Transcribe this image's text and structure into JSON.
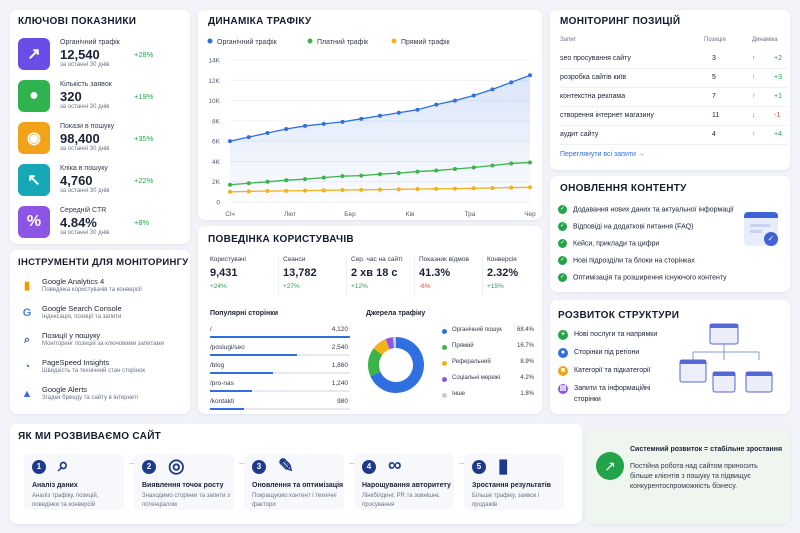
{
  "kpi": {
    "title": "КЛЮЧОВІ ПОКАЗНИКИ",
    "items": [
      {
        "label": "Органічний трафік",
        "value": "12,540",
        "period": "за останні 30 днів",
        "change": "+28%",
        "color": "#6a4de6",
        "icon": "trend-up-icon",
        "glyph": "↗"
      },
      {
        "label": "Кількість заявок",
        "value": "320",
        "period": "за останні 30 днів",
        "change": "+19%",
        "color": "#2fb34f",
        "icon": "user-icon",
        "glyph": "●"
      },
      {
        "label": "Покази в пошуку",
        "value": "98,400",
        "period": "за останні 30 днів",
        "change": "+35%",
        "color": "#f2a31a",
        "icon": "eye-icon",
        "glyph": "◉"
      },
      {
        "label": "Кліка в пошуку",
        "value": "4,760",
        "period": "за останні 30 днів",
        "change": "+22%",
        "color": "#17a8b8",
        "icon": "cursor-icon",
        "glyph": "↖"
      },
      {
        "label": "Середній CTR",
        "value": "4.84%",
        "period": "за останні 30 днів",
        "change": "+8%",
        "color": "#8c55e3",
        "icon": "percent-icon",
        "glyph": "%"
      }
    ]
  },
  "traffic": {
    "title": "ДИНАМІКА ТРАФІКУ",
    "legend": [
      "Органічний трафік",
      "Платний трафік",
      "Прямий трафік"
    ]
  },
  "chart_data": {
    "type": "line",
    "categories": [
      "Січ",
      "Лют",
      "Бер",
      "Кві",
      "Тра",
      "Чер"
    ],
    "x": [
      0,
      1,
      2,
      3,
      4,
      5,
      6,
      7,
      8,
      9,
      10,
      11,
      12,
      13,
      14,
      15,
      16
    ],
    "series": [
      {
        "name": "Органічний трафік",
        "color": "#2f6fe0",
        "values": [
          6000,
          6400,
          6800,
          7200,
          7500,
          7700,
          7900,
          8200,
          8500,
          8800,
          9100,
          9600,
          10000,
          10500,
          11100,
          11800,
          12500
        ]
      },
      {
        "name": "Платний трафік",
        "color": "#3cb34a",
        "values": [
          1700,
          1850,
          2000,
          2150,
          2250,
          2400,
          2550,
          2600,
          2750,
          2850,
          3000,
          3100,
          3250,
          3400,
          3600,
          3800,
          3900
        ]
      },
      {
        "name": "Прямий трафік",
        "color": "#f2b21a",
        "values": [
          1000,
          1050,
          1080,
          1100,
          1120,
          1150,
          1180,
          1200,
          1220,
          1250,
          1280,
          1300,
          1320,
          1350,
          1380,
          1420,
          1450
        ]
      }
    ],
    "ylim": [
      0,
      14000
    ],
    "yticks": [
      "0",
      "2K",
      "4K",
      "6K",
      "8K",
      "10K",
      "12K",
      "14K"
    ],
    "grid": true,
    "legend_position": "top"
  },
  "positions": {
    "title": "МОНІТОРИНГ ПОЗИЦІЙ",
    "headers": [
      "Запит",
      "Позиція",
      "Динаміка"
    ],
    "rows": [
      {
        "query": "seo просування сайту",
        "pos": "3",
        "dir": "↑",
        "change": "+2",
        "up": true
      },
      {
        "query": "розробка сайтів київ",
        "pos": "5",
        "dir": "↑",
        "change": "+3",
        "up": true
      },
      {
        "query": "контекстна реклама",
        "pos": "7",
        "dir": "↑",
        "change": "+1",
        "up": true
      },
      {
        "query": "створення інтернет магазину",
        "pos": "11",
        "dir": "↓",
        "change": "-1",
        "up": false
      },
      {
        "query": "аудит сайту",
        "pos": "4",
        "dir": "↑",
        "change": "+4",
        "up": true
      }
    ],
    "link": "Переглянути всі запити →"
  },
  "content": {
    "title": "ОНОВЛЕННЯ КОНТЕНТУ",
    "items": [
      "Додавання нових даних та актуальної інформації",
      "Відповіді на додаткові питання (FAQ)",
      "Кейси, приклади та цифри",
      "Нові підрозділи та блоки на сторінках",
      "Оптимізація та розширення існуючого контенту"
    ]
  },
  "tools": {
    "title": "ІНСТРУМЕНТИ ДЛЯ МОНІТОРИНГУ",
    "items": [
      {
        "name": "Google Analytics 4",
        "desc": "Поведінка користувачів та конверсії",
        "icon": "analytics-icon",
        "glyph": "▮",
        "color": "#f29900"
      },
      {
        "name": "Google Search Console",
        "desc": "Індексація, позиції та запити",
        "icon": "google-icon",
        "glyph": "G",
        "color": "#4285f4"
      },
      {
        "name": "Позиції у пошуку",
        "desc": "Моніторинг позицій за ключовими запитами",
        "icon": "search-icon",
        "glyph": "⌕",
        "color": "#4a55a2"
      },
      {
        "name": "PageSpeed Insights",
        "desc": "Швидкість та технічний стан сторінок",
        "icon": "speed-icon",
        "glyph": "◔",
        "color": "#3b6fe0"
      },
      {
        "name": "Google Alerts",
        "desc": "Згадки бренду та сайту в інтернеті",
        "icon": "bell-icon",
        "glyph": "▲",
        "color": "#3b6fe0"
      }
    ]
  },
  "behavior": {
    "title": "ПОВЕДІНКА КОРИСТУВАЧІВ",
    "stats": [
      {
        "label": "Користувачі",
        "value": "9,431",
        "change": "+24%",
        "up": true
      },
      {
        "label": "Сеанси",
        "value": "13,782",
        "change": "+27%",
        "up": true
      },
      {
        "label": "Сер. час на сайті",
        "value": "2 хв 18 с",
        "change": "+12%",
        "up": true
      },
      {
        "label": "Показник відмов",
        "value": "41.3%",
        "change": "-6%",
        "up": false
      },
      {
        "label": "Конверсія",
        "value": "2.32%",
        "change": "+15%",
        "up": true
      }
    ],
    "pages_title": "Популярні сторінки",
    "pages": [
      {
        "path": "/",
        "value": "4,120",
        "share": 1.0
      },
      {
        "path": "/poslugi/seo",
        "value": "2,540",
        "share": 0.62
      },
      {
        "path": "/blog",
        "value": "1,860",
        "share": 0.45
      },
      {
        "path": "/pro-nas",
        "value": "1,240",
        "share": 0.3
      },
      {
        "path": "/kontakti",
        "value": "980",
        "share": 0.24
      }
    ],
    "sources_title": "Джерела трафіку",
    "sources": [
      {
        "name": "Органічний пошук",
        "value": "68.4%",
        "pct": 68.4,
        "color": "#2f6fe0"
      },
      {
        "name": "Прямий",
        "value": "16.7%",
        "pct": 16.7,
        "color": "#3cb34a"
      },
      {
        "name": "Реферальний",
        "value": "8.9%",
        "pct": 8.9,
        "color": "#f2b21a"
      },
      {
        "name": "Соціальні мережі",
        "value": "4.2%",
        "pct": 4.2,
        "color": "#8c55e3"
      },
      {
        "name": "Інше",
        "value": "1.8%",
        "pct": 1.8,
        "color": "#c8ccd6"
      }
    ]
  },
  "structure": {
    "title": "РОЗВИТОК СТРУКТУРИ",
    "items": [
      {
        "text": "Нові послуги та напрямки",
        "icon": "plus-circle-icon",
        "glyph": "+",
        "color": "#23a34a"
      },
      {
        "text": "Сторінки під регіони",
        "icon": "location-icon",
        "glyph": "●",
        "color": "#2f6fe0"
      },
      {
        "text": "Категорії та підкатегорії",
        "icon": "folder-icon",
        "glyph": "■",
        "color": "#f2a31a"
      },
      {
        "text": "Запити та інформаційні",
        "text2": "сторінки",
        "icon": "document-icon",
        "glyph": "▤",
        "color": "#8c55e3"
      }
    ]
  },
  "process": {
    "title": "ЯК МИ РОЗВИВАЄМО САЙТ",
    "steps": [
      {
        "num": "1",
        "title": "Аналіз даних",
        "desc": "Аналіз трафіку, позицій, поведінки та конверсій",
        "icon": "magnifier-icon",
        "glyph": "⌕"
      },
      {
        "num": "2",
        "title": "Виявлення точок росту",
        "desc": "Знаходимо сторінки та запити з потенціалом",
        "icon": "target-icon",
        "glyph": "◎"
      },
      {
        "num": "3",
        "title": "Оновлення та оптимізація",
        "desc": "Покращуємо контент і технічні фактори",
        "icon": "pencil-icon",
        "glyph": "✎"
      },
      {
        "num": "4",
        "title": "Нарощування авторитету",
        "desc": "Лінкбілдинг, PR та зовнішнє просування",
        "icon": "link-icon",
        "glyph": "∞"
      },
      {
        "num": "5",
        "title": "Зростання результатів",
        "desc": "Більше трафіку, заявок і продажів",
        "icon": "bar-chart-icon",
        "glyph": "▮"
      }
    ],
    "summary_title": "Системний розвиток = стабільне зростання",
    "summary_text": "Постійна робота над сайтом приносить більше клієнтів з пошуку та підвищує конкурентоспроможність бізнесу.",
    "summary_icon": "growth-icon"
  }
}
